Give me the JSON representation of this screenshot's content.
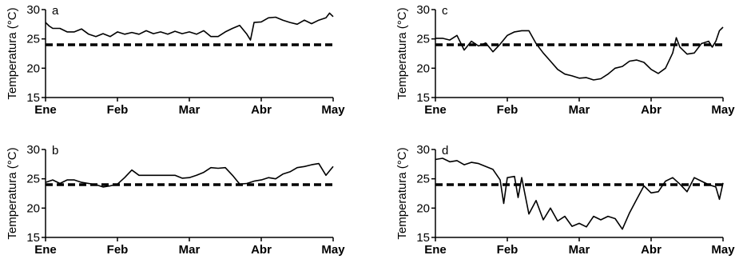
{
  "chart_data": [
    {
      "type": "line",
      "panel": "a",
      "ylabel": "Temperatura (°C)",
      "ylim": [
        15,
        30
      ],
      "yticks": [
        15,
        20,
        25,
        30
      ],
      "xticks": [
        "Ene",
        "Feb",
        "Mar",
        "Abr",
        "May"
      ],
      "xlim": [
        0,
        4
      ],
      "threshold": 24,
      "series": [
        {
          "values": [
            [
              0,
              27.8
            ],
            [
              0.05,
              27.2
            ],
            [
              0.1,
              26.8
            ],
            [
              0.2,
              26.8
            ],
            [
              0.3,
              26.2
            ],
            [
              0.4,
              26.2
            ],
            [
              0.5,
              26.7
            ],
            [
              0.6,
              25.8
            ],
            [
              0.7,
              25.4
            ],
            [
              0.8,
              25.9
            ],
            [
              0.9,
              25.4
            ],
            [
              1.0,
              26.2
            ],
            [
              1.1,
              25.8
            ],
            [
              1.2,
              26.1
            ],
            [
              1.3,
              25.8
            ],
            [
              1.4,
              26.4
            ],
            [
              1.5,
              25.9
            ],
            [
              1.6,
              26.2
            ],
            [
              1.7,
              25.8
            ],
            [
              1.8,
              26.3
            ],
            [
              1.9,
              25.9
            ],
            [
              2.0,
              26.2
            ],
            [
              2.1,
              25.8
            ],
            [
              2.2,
              26.4
            ],
            [
              2.3,
              25.4
            ],
            [
              2.4,
              25.4
            ],
            [
              2.5,
              26.2
            ],
            [
              2.6,
              26.8
            ],
            [
              2.7,
              27.3
            ],
            [
              2.8,
              25.8
            ],
            [
              2.85,
              24.8
            ],
            [
              2.9,
              27.8
            ],
            [
              3.0,
              27.9
            ],
            [
              3.1,
              28.6
            ],
            [
              3.2,
              28.7
            ],
            [
              3.3,
              28.2
            ],
            [
              3.4,
              27.8
            ],
            [
              3.5,
              27.5
            ],
            [
              3.6,
              28.2
            ],
            [
              3.7,
              27.6
            ],
            [
              3.8,
              28.2
            ],
            [
              3.9,
              28.6
            ],
            [
              3.95,
              29.4
            ],
            [
              4.0,
              28.8
            ]
          ]
        }
      ]
    },
    {
      "type": "line",
      "panel": "b",
      "ylabel": "Temperatura (°C)",
      "ylim": [
        15,
        30
      ],
      "yticks": [
        15,
        20,
        25,
        30
      ],
      "xticks": [
        "Ene",
        "Feb",
        "Mar",
        "Abr",
        "May"
      ],
      "xlim": [
        0,
        4
      ],
      "threshold": 24,
      "series": [
        {
          "values": [
            [
              0,
              24.4
            ],
            [
              0.1,
              24.8
            ],
            [
              0.2,
              24.2
            ],
            [
              0.3,
              24.8
            ],
            [
              0.4,
              24.8
            ],
            [
              0.5,
              24.4
            ],
            [
              0.6,
              24.2
            ],
            [
              0.7,
              24.0
            ],
            [
              0.8,
              23.6
            ],
            [
              0.9,
              23.8
            ],
            [
              1.0,
              24.1
            ],
            [
              1.1,
              25.2
            ],
            [
              1.2,
              26.5
            ],
            [
              1.3,
              25.6
            ],
            [
              1.4,
              25.6
            ],
            [
              1.5,
              25.6
            ],
            [
              1.6,
              25.6
            ],
            [
              1.7,
              25.6
            ],
            [
              1.8,
              25.6
            ],
            [
              1.9,
              25.1
            ],
            [
              2.0,
              25.2
            ],
            [
              2.1,
              25.6
            ],
            [
              2.2,
              26.1
            ],
            [
              2.3,
              26.9
            ],
            [
              2.4,
              26.8
            ],
            [
              2.5,
              26.9
            ],
            [
              2.6,
              25.6
            ],
            [
              2.7,
              24.1
            ],
            [
              2.8,
              24.2
            ],
            [
              2.9,
              24.6
            ],
            [
              3.0,
              24.8
            ],
            [
              3.1,
              25.2
            ],
            [
              3.2,
              25.0
            ],
            [
              3.3,
              25.8
            ],
            [
              3.4,
              26.2
            ],
            [
              3.5,
              26.9
            ],
            [
              3.6,
              27.1
            ],
            [
              3.7,
              27.4
            ],
            [
              3.8,
              27.6
            ],
            [
              3.9,
              25.6
            ],
            [
              4.0,
              27.1
            ]
          ]
        }
      ]
    },
    {
      "type": "line",
      "panel": "c",
      "ylabel": "Temperatura (°C)",
      "ylim": [
        15,
        30
      ],
      "yticks": [
        15,
        20,
        25,
        30
      ],
      "xticks": [
        "Ene",
        "Feb",
        "Mar",
        "Abr",
        "May"
      ],
      "xlim": [
        0,
        4
      ],
      "threshold": 24,
      "series": [
        {
          "values": [
            [
              0,
              25.1
            ],
            [
              0.1,
              25.1
            ],
            [
              0.2,
              24.8
            ],
            [
              0.3,
              25.6
            ],
            [
              0.4,
              23.1
            ],
            [
              0.5,
              24.6
            ],
            [
              0.6,
              23.8
            ],
            [
              0.7,
              24.3
            ],
            [
              0.8,
              22.8
            ],
            [
              0.9,
              24.1
            ],
            [
              1.0,
              25.6
            ],
            [
              1.1,
              26.2
            ],
            [
              1.2,
              26.4
            ],
            [
              1.3,
              26.4
            ],
            [
              1.4,
              24.2
            ],
            [
              1.5,
              22.6
            ],
            [
              1.6,
              21.2
            ],
            [
              1.7,
              19.8
            ],
            [
              1.8,
              19.0
            ],
            [
              1.9,
              18.7
            ],
            [
              2.0,
              18.3
            ],
            [
              2.1,
              18.4
            ],
            [
              2.2,
              18.0
            ],
            [
              2.3,
              18.2
            ],
            [
              2.4,
              19.0
            ],
            [
              2.5,
              20.0
            ],
            [
              2.6,
              20.3
            ],
            [
              2.7,
              21.2
            ],
            [
              2.8,
              21.4
            ],
            [
              2.9,
              21.0
            ],
            [
              3.0,
              19.8
            ],
            [
              3.1,
              19.1
            ],
            [
              3.2,
              20.0
            ],
            [
              3.3,
              22.6
            ],
            [
              3.35,
              25.2
            ],
            [
              3.4,
              23.6
            ],
            [
              3.5,
              22.4
            ],
            [
              3.6,
              22.6
            ],
            [
              3.7,
              24.2
            ],
            [
              3.8,
              24.6
            ],
            [
              3.85,
              23.6
            ],
            [
              3.9,
              24.6
            ],
            [
              3.95,
              26.4
            ],
            [
              4.0,
              27.0
            ]
          ]
        }
      ]
    },
    {
      "type": "line",
      "panel": "d",
      "ylabel": "Temperatura (°C)",
      "ylim": [
        15,
        30
      ],
      "yticks": [
        15,
        20,
        25,
        30
      ],
      "xticks": [
        "Ene",
        "Feb",
        "Mar",
        "Abr",
        "May"
      ],
      "xlim": [
        0,
        4
      ],
      "threshold": 24,
      "series": [
        {
          "values": [
            [
              0,
              28.3
            ],
            [
              0.1,
              28.5
            ],
            [
              0.2,
              27.9
            ],
            [
              0.3,
              28.1
            ],
            [
              0.4,
              27.4
            ],
            [
              0.5,
              27.8
            ],
            [
              0.6,
              27.6
            ],
            [
              0.7,
              27.1
            ],
            [
              0.8,
              26.6
            ],
            [
              0.9,
              24.8
            ],
            [
              0.95,
              20.8
            ],
            [
              1.0,
              25.2
            ],
            [
              1.1,
              25.4
            ],
            [
              1.15,
              21.8
            ],
            [
              1.2,
              25.2
            ],
            [
              1.3,
              19.0
            ],
            [
              1.4,
              21.3
            ],
            [
              1.5,
              18.0
            ],
            [
              1.6,
              20.0
            ],
            [
              1.7,
              17.8
            ],
            [
              1.8,
              18.6
            ],
            [
              1.9,
              16.9
            ],
            [
              2.0,
              17.4
            ],
            [
              2.1,
              16.8
            ],
            [
              2.2,
              18.6
            ],
            [
              2.3,
              18.0
            ],
            [
              2.4,
              18.6
            ],
            [
              2.5,
              18.2
            ],
            [
              2.6,
              16.4
            ],
            [
              2.7,
              19.2
            ],
            [
              2.8,
              21.5
            ],
            [
              2.9,
              23.8
            ],
            [
              3.0,
              22.6
            ],
            [
              3.1,
              22.8
            ],
            [
              3.2,
              24.6
            ],
            [
              3.3,
              25.2
            ],
            [
              3.4,
              24.1
            ],
            [
              3.5,
              22.8
            ],
            [
              3.6,
              25.2
            ],
            [
              3.7,
              24.6
            ],
            [
              3.8,
              24.0
            ],
            [
              3.9,
              23.6
            ],
            [
              3.95,
              21.5
            ],
            [
              4.0,
              24.3
            ]
          ]
        }
      ]
    }
  ]
}
